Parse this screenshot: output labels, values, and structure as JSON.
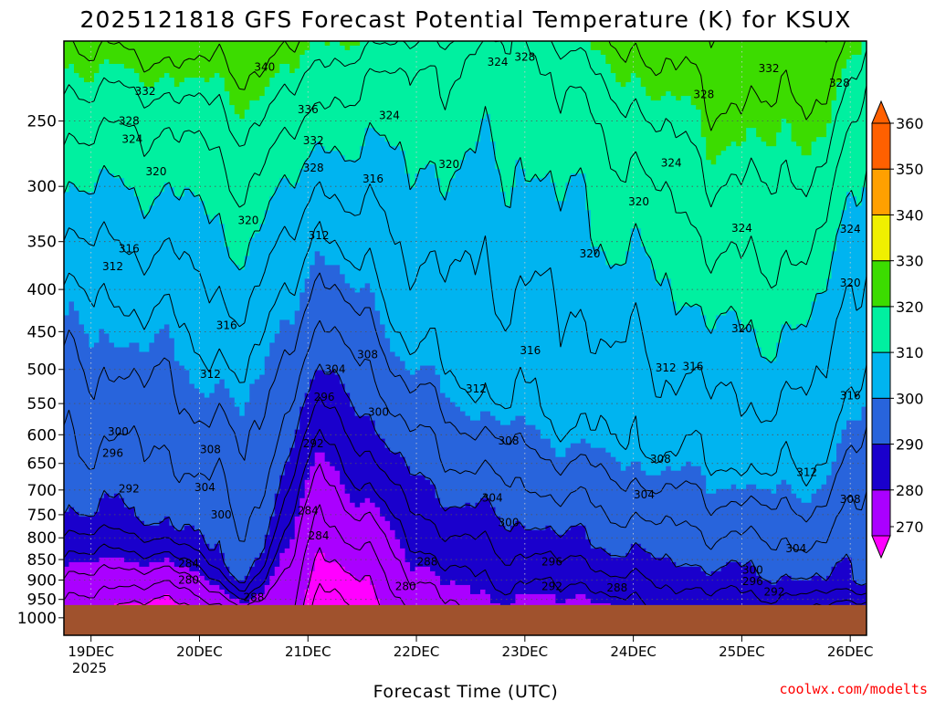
{
  "colors": {
    "band_270": "#ff00ff",
    "band_280": "#aa00ff",
    "band_290": "#1a00cc",
    "band_300": "#2864dc",
    "band_310": "#00b4f0",
    "band_320": "#00f0a0",
    "band_330": "#3cdc00",
    "band_340": "#f0f000",
    "band_350": "#ffa000",
    "band_360": "#ff6000",
    "ground": "#a0522d",
    "contour": "#000000",
    "grid": "#555555",
    "credit": "#ff0000"
  },
  "chart_data": {
    "type": "heatmap",
    "variable": "Potential Temperature (K)",
    "title": "2025121818 GFS Forecast Potential Temperature (K) for KSUX",
    "xlabel": "Forecast Time (UTC)",
    "ylabel": "",
    "credit": "coolwx.com/modelts",
    "x_ticks": [
      "19DEC",
      "20DEC",
      "21DEC",
      "22DEC",
      "23DEC",
      "24DEC",
      "25DEC",
      "26DEC"
    ],
    "x_year_label": "2025",
    "x_range_days": [
      -0.25,
      7.15
    ],
    "y_ticks": [
      "250",
      "300",
      "350",
      "400",
      "450",
      "500",
      "550",
      "600",
      "650",
      "700",
      "750",
      "800",
      "850",
      "900",
      "950",
      "1000"
    ],
    "y_tick_values": [
      250,
      300,
      350,
      400,
      450,
      500,
      550,
      600,
      650,
      700,
      750,
      800,
      850,
      900,
      950,
      1000
    ],
    "y_range_hPa": [
      200,
      1050
    ],
    "y_scale": "log-pressure",
    "ground_top_hPa": 965,
    "colorbar": {
      "ticks": [
        "270",
        "280",
        "290",
        "300",
        "310",
        "320",
        "330",
        "340",
        "350",
        "360"
      ],
      "bands": [
        270,
        280,
        290,
        300,
        310,
        320,
        330,
        340,
        350,
        360
      ],
      "extend": "both"
    },
    "contour_interval_K": 4,
    "contour_labels": [
      {
        "t": 1.6,
        "p": 215,
        "v": "340"
      },
      {
        "t": 0.5,
        "p": 230,
        "v": "332"
      },
      {
        "t": 0.35,
        "p": 250,
        "v": "328"
      },
      {
        "t": 0.38,
        "p": 263,
        "v": "324"
      },
      {
        "t": 0.6,
        "p": 288,
        "v": "320"
      },
      {
        "t": 0.35,
        "p": 357,
        "v": "316"
      },
      {
        "t": 0.2,
        "p": 375,
        "v": "312"
      },
      {
        "t": 2.0,
        "p": 242,
        "v": "336"
      },
      {
        "t": 2.05,
        "p": 264,
        "v": "332"
      },
      {
        "t": 2.05,
        "p": 285,
        "v": "328"
      },
      {
        "t": 2.75,
        "p": 246,
        "v": "324"
      },
      {
        "t": 2.6,
        "p": 294,
        "v": "316"
      },
      {
        "t": 1.45,
        "p": 330,
        "v": "320"
      },
      {
        "t": 2.1,
        "p": 344,
        "v": "312"
      },
      {
        "t": 3.3,
        "p": 282,
        "v": "320"
      },
      {
        "t": 3.75,
        "p": 212,
        "v": "324"
      },
      {
        "t": 4.0,
        "p": 209,
        "v": "328"
      },
      {
        "t": 4.6,
        "p": 362,
        "v": "320"
      },
      {
        "t": 5.35,
        "p": 281,
        "v": "324"
      },
      {
        "t": 5.05,
        "p": 313,
        "v": "320"
      },
      {
        "t": 6.25,
        "p": 216,
        "v": "332"
      },
      {
        "t": 5.65,
        "p": 232,
        "v": "328"
      },
      {
        "t": 6.9,
        "p": 225,
        "v": "328"
      },
      {
        "t": 6.0,
        "p": 337,
        "v": "324"
      },
      {
        "t": 7.0,
        "p": 338,
        "v": "324"
      },
      {
        "t": 7.0,
        "p": 393,
        "v": "320"
      },
      {
        "t": 6.0,
        "p": 446,
        "v": "320"
      },
      {
        "t": 1.25,
        "p": 442,
        "v": "316"
      },
      {
        "t": 1.1,
        "p": 507,
        "v": "312"
      },
      {
        "t": 4.05,
        "p": 474,
        "v": "316"
      },
      {
        "t": 3.55,
        "p": 528,
        "v": "312"
      },
      {
        "t": 5.3,
        "p": 498,
        "v": "312"
      },
      {
        "t": 5.55,
        "p": 496,
        "v": "316"
      },
      {
        "t": 7.0,
        "p": 538,
        "v": "316"
      },
      {
        "t": 2.55,
        "p": 480,
        "v": "308"
      },
      {
        "t": 2.25,
        "p": 500,
        "v": "304"
      },
      {
        "t": 2.15,
        "p": 540,
        "v": "296"
      },
      {
        "t": 2.65,
        "p": 563,
        "v": "300"
      },
      {
        "t": 0.25,
        "p": 595,
        "v": "300"
      },
      {
        "t": 0.2,
        "p": 632,
        "v": "296"
      },
      {
        "t": 0.35,
        "p": 698,
        "v": "292"
      },
      {
        "t": 1.1,
        "p": 625,
        "v": "308"
      },
      {
        "t": 1.05,
        "p": 695,
        "v": "304"
      },
      {
        "t": 1.2,
        "p": 750,
        "v": "300"
      },
      {
        "t": 2.05,
        "p": 615,
        "v": "292"
      },
      {
        "t": 2.0,
        "p": 742,
        "v": "284"
      },
      {
        "t": 3.85,
        "p": 610,
        "v": "308"
      },
      {
        "t": 3.7,
        "p": 716,
        "v": "304"
      },
      {
        "t": 3.85,
        "p": 767,
        "v": "300"
      },
      {
        "t": 4.25,
        "p": 855,
        "v": "296"
      },
      {
        "t": 4.25,
        "p": 916,
        "v": "292"
      },
      {
        "t": 4.85,
        "p": 920,
        "v": "288"
      },
      {
        "t": 3.1,
        "p": 855,
        "v": "288"
      },
      {
        "t": 5.25,
        "p": 642,
        "v": "308"
      },
      {
        "t": 5.1,
        "p": 709,
        "v": "304"
      },
      {
        "t": 6.6,
        "p": 666,
        "v": "312"
      },
      {
        "t": 7.0,
        "p": 718,
        "v": "308"
      },
      {
        "t": 6.5,
        "p": 824,
        "v": "304"
      },
      {
        "t": 6.1,
        "p": 875,
        "v": "300"
      },
      {
        "t": 6.1,
        "p": 903,
        "v": "296"
      },
      {
        "t": 6.3,
        "p": 930,
        "v": "292"
      },
      {
        "t": 0.9,
        "p": 860,
        "v": "284"
      },
      {
        "t": 0.9,
        "p": 900,
        "v": "280"
      },
      {
        "t": 1.5,
        "p": 945,
        "v": "288"
      },
      {
        "t": 2.1,
        "p": 795,
        "v": "284"
      },
      {
        "t": 2.9,
        "p": 916,
        "v": "280"
      }
    ]
  }
}
